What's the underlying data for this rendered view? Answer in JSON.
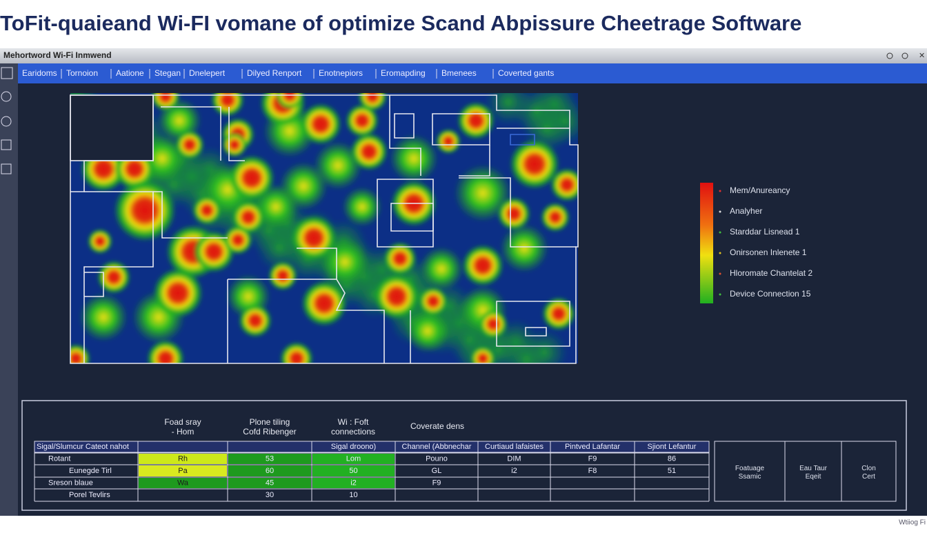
{
  "header": {
    "title": "ToFit-quaieand Wi-FI vomane of optimize Scand Abpissure Cheetrage Software"
  },
  "window": {
    "title": "Mehortword Wi-Fi Inmwend",
    "menu": [
      "Earidoms",
      "Tornoion",
      "Aatione",
      "Stegan",
      "Dnelepert",
      "Dilyed Renport",
      "Enotnepiors",
      "Eromapding",
      "Bmenees",
      "Coverted gants"
    ]
  },
  "legend": {
    "items": [
      "Mem/Anureancy",
      "Analyher",
      "Starddar Lisnead 1",
      "Onirsonen Inlenete 1",
      "Hloromate Chantelat 2",
      "Device Connection 15"
    ]
  },
  "table": {
    "group_headers": [
      "Foad sray\n- Hom",
      "Plone tiling\nCofd Ribenger",
      "Wi : Foft\nconnections",
      "Coverate dens"
    ],
    "columns": [
      "Sigal/Slumcur Cateot nahot",
      null,
      null,
      "Sigal droono)",
      "Channel (Abbnechar",
      "Curtiaud lafaistes",
      "Pintved Lafantar",
      "Sjiont Lefantur"
    ],
    "rows": [
      [
        "Rotant",
        "Rh",
        "53",
        "Lom",
        "Pouno",
        "DIM",
        "F9",
        "86"
      ],
      [
        "Eunegde Tirl",
        "Pa",
        "60",
        "50",
        "GL",
        "i2",
        "F8",
        "51"
      ],
      [
        "Sreson blaue",
        "Wa",
        "45",
        "i2",
        "F9",
        null,
        null,
        null
      ],
      [
        "Porel Tevlirs",
        null,
        "30",
        "10",
        null,
        null,
        null,
        null
      ]
    ],
    "side_boxes": [
      "Foatuage\nSsamic",
      "Eau Taur\nEqeit",
      "Clon\nCert"
    ]
  },
  "footer": {
    "watermark": "Wtiiog Fi"
  }
}
